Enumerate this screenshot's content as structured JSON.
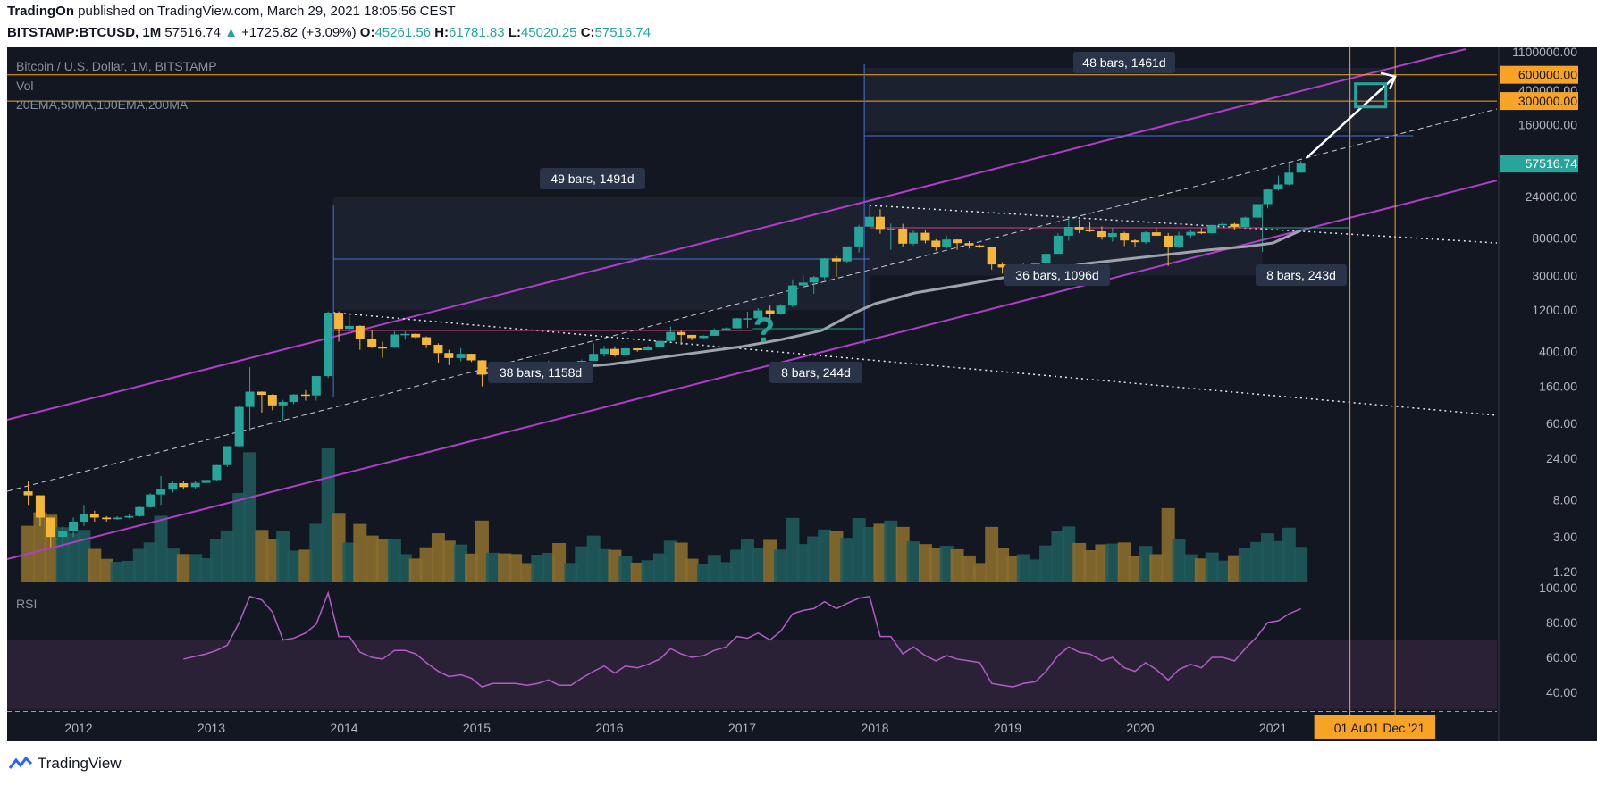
{
  "header": {
    "publisher": "TradingOn",
    "published_text": "published on TradingView.com, March 29, 2021 18:05:56 CEST",
    "symbol": "BITSTAMP:BTCUSD, 1M",
    "last": "57516.74",
    "change": "+1725.82 (+3.09%)",
    "o_label": "O:",
    "o": "45261.56",
    "h_label": "H:",
    "h": "61781.83",
    "l_label": "L:",
    "l": "45020.25",
    "c_label": "C:",
    "c": "57516.74"
  },
  "legend": {
    "title": "Bitcoin / U.S. Dollar, 1M, BITSTAMP",
    "vol": "Vol",
    "ma": "20EMA,50MA,100EMA,200MA",
    "rsi": "RSI"
  },
  "footer": {
    "brand": "TradingView"
  },
  "colors": {
    "bg": "#131722",
    "up": "#26a69a",
    "down": "#f5b73a",
    "channel": "#b03ec8",
    "hline": "#f7a325",
    "ma": "#9fa3ab",
    "measure": "#2962ff",
    "rsi": "#b35cc7"
  },
  "chart_data": {
    "type": "candlestick",
    "title": "Bitcoin / U.S. Dollar, 1M, BITSTAMP",
    "y_scale": "log",
    "price_ticks": [
      "1100000.00",
      "400000.00",
      "160000.00",
      "24000.00",
      "8000.00",
      "3000.00",
      "1200.00",
      "400.00",
      "160.00",
      "60.00",
      "24.00",
      "8.00",
      "3.00",
      "1.20"
    ],
    "price_tick_values": [
      1100000,
      400000,
      160000,
      24000,
      8000,
      3000,
      1200,
      400,
      160,
      60,
      24,
      8,
      3,
      1.2
    ],
    "rsi_ticks": [
      "100.00",
      "80.00",
      "60.00",
      "40.00"
    ],
    "rsi_tick_values": [
      100,
      80,
      60,
      40
    ],
    "x_ticks": [
      "2012",
      "2013",
      "2014",
      "2015",
      "2016",
      "2017",
      "2018",
      "2019",
      "2020",
      "2021"
    ],
    "x_tick_values": [
      2012,
      2013,
      2014,
      2015,
      2016,
      2017,
      2018,
      2019,
      2020,
      2021
    ],
    "horizontal_levels": [
      {
        "label": "600000.00",
        "value": 600000
      },
      {
        "label": "300000.00",
        "value": 300000
      }
    ],
    "last_price_label": "57516.74",
    "last_price": 57516.74,
    "vertical_markers": [
      {
        "label": "01 Au",
        "t": 2021.58
      },
      {
        "label": "01 Dec '21",
        "t": 2021.92
      }
    ],
    "measurements": [
      {
        "label": "48 bars, 1461d",
        "t0": 2017.92,
        "t1": 2021.92
      },
      {
        "label": "49 bars, 1491d",
        "t0": 2013.92,
        "t1": 2017.96
      },
      {
        "label": "38 bars, 1158d",
        "t0": 2013.92,
        "t1": 2017.08
      },
      {
        "label": "8 bars, 244d",
        "t0": 2017.08,
        "t1": 2017.92
      },
      {
        "label": "36 bars, 1096d",
        "t0": 2017.96,
        "t1": 2020.92
      },
      {
        "label": "8 bars, 243d",
        "t0": 2020.92,
        "t1": 2021.58
      }
    ],
    "annotation": "?",
    "candles": [
      [
        2011.62,
        10,
        13,
        7,
        9
      ],
      [
        2011.71,
        9,
        9,
        4,
        5
      ],
      [
        2011.79,
        5,
        5,
        2.3,
        3
      ],
      [
        2011.88,
        3,
        4,
        2.2,
        3.5
      ],
      [
        2011.96,
        3.5,
        5,
        3,
        4.5
      ],
      [
        2012.04,
        4.5,
        7,
        4,
        5.5
      ],
      [
        2012.12,
        5.5,
        6,
        4.5,
        5
      ],
      [
        2012.21,
        5,
        5.2,
        4.5,
        4.8
      ],
      [
        2012.29,
        4.8,
        5.2,
        4.7,
        5
      ],
      [
        2012.38,
        5,
        5.5,
        4.9,
        5.2
      ],
      [
        2012.46,
        5.2,
        6.8,
        5.1,
        6.6
      ],
      [
        2012.54,
        6.6,
        9.5,
        6.5,
        9.2
      ],
      [
        2012.62,
        9.2,
        15,
        7,
        10.5
      ],
      [
        2012.71,
        10.5,
        13,
        9.7,
        12.4
      ],
      [
        2012.79,
        12.4,
        13,
        10.5,
        11.2
      ],
      [
        2012.88,
        11.2,
        13,
        10.5,
        12.5
      ],
      [
        2012.96,
        12.5,
        14,
        12,
        13.5
      ],
      [
        2013.04,
        13.5,
        20,
        13,
        20
      ],
      [
        2013.12,
        20,
        33,
        19,
        33
      ],
      [
        2013.21,
        33,
        95,
        32,
        93
      ],
      [
        2013.29,
        93,
        266,
        50,
        139
      ],
      [
        2013.38,
        139,
        140,
        80,
        128
      ],
      [
        2013.46,
        128,
        130,
        85,
        97
      ],
      [
        2013.54,
        97,
        112,
        65,
        106
      ],
      [
        2013.62,
        106,
        130,
        100,
        129
      ],
      [
        2013.71,
        129,
        145,
        110,
        126
      ],
      [
        2013.79,
        126,
        210,
        110,
        210
      ],
      [
        2013.88,
        210,
        1160,
        200,
        1120
      ],
      [
        2013.96,
        1120,
        1160,
        520,
        730
      ],
      [
        2014.04,
        730,
        1020,
        700,
        790
      ],
      [
        2014.12,
        790,
        800,
        420,
        560
      ],
      [
        2014.21,
        560,
        710,
        440,
        450
      ],
      [
        2014.29,
        450,
        520,
        340,
        445
      ],
      [
        2014.38,
        445,
        680,
        440,
        630
      ],
      [
        2014.46,
        630,
        680,
        550,
        640
      ],
      [
        2014.54,
        640,
        650,
        560,
        586
      ],
      [
        2014.62,
        586,
        600,
        440,
        480
      ],
      [
        2014.71,
        480,
        500,
        300,
        386
      ],
      [
        2014.79,
        386,
        420,
        280,
        338
      ],
      [
        2014.88,
        338,
        440,
        310,
        378
      ],
      [
        2014.96,
        378,
        380,
        305,
        318
      ],
      [
        2015.04,
        318,
        320,
        160,
        218
      ],
      [
        2015.12,
        218,
        265,
        210,
        254
      ],
      [
        2015.21,
        254,
        300,
        240,
        244
      ],
      [
        2015.29,
        244,
        260,
        210,
        236
      ],
      [
        2015.38,
        236,
        250,
        230,
        230
      ],
      [
        2015.46,
        230,
        270,
        220,
        263
      ],
      [
        2015.54,
        263,
        315,
        250,
        285
      ],
      [
        2015.62,
        285,
        290,
        200,
        230
      ],
      [
        2015.71,
        230,
        245,
        225,
        237
      ],
      [
        2015.79,
        237,
        325,
        235,
        314
      ],
      [
        2015.88,
        314,
        500,
        310,
        377
      ],
      [
        2015.96,
        377,
        465,
        350,
        430
      ],
      [
        2016.04,
        430,
        460,
        350,
        368
      ],
      [
        2016.12,
        368,
        440,
        365,
        437
      ],
      [
        2016.21,
        437,
        438,
        400,
        416
      ],
      [
        2016.29,
        416,
        470,
        415,
        448
      ],
      [
        2016.38,
        448,
        550,
        440,
        531
      ],
      [
        2016.46,
        531,
        780,
        520,
        672
      ],
      [
        2016.54,
        672,
        700,
        480,
        623
      ],
      [
        2016.62,
        623,
        625,
        540,
        574
      ],
      [
        2016.71,
        574,
        615,
        570,
        609
      ],
      [
        2016.79,
        609,
        740,
        605,
        698
      ],
      [
        2016.88,
        698,
        760,
        690,
        742
      ],
      [
        2016.96,
        742,
        975,
        740,
        966
      ],
      [
        2017.04,
        966,
        1150,
        750,
        966
      ],
      [
        2017.12,
        966,
        1260,
        930,
        1190
      ],
      [
        2017.21,
        1190,
        1350,
        890,
        1071
      ],
      [
        2017.29,
        1071,
        1400,
        1060,
        1348
      ],
      [
        2017.38,
        1348,
        2700,
        1300,
        2300
      ],
      [
        2017.46,
        2300,
        3000,
        2100,
        2480
      ],
      [
        2017.54,
        2480,
        2950,
        1850,
        2860
      ],
      [
        2017.62,
        2860,
        4750,
        2700,
        4700
      ],
      [
        2017.71,
        4700,
        5000,
        2900,
        4340
      ],
      [
        2017.79,
        4340,
        6400,
        4100,
        6450
      ],
      [
        2017.88,
        6450,
        11400,
        5500,
        10860
      ],
      [
        2017.96,
        10860,
        19700,
        10800,
        14100
      ],
      [
        2018.04,
        14100,
        17200,
        9000,
        10200
      ],
      [
        2018.12,
        10200,
        11800,
        5900,
        10300
      ],
      [
        2018.21,
        10300,
        11700,
        6400,
        6930
      ],
      [
        2018.29,
        6930,
        9800,
        6600,
        9240
      ],
      [
        2018.38,
        9240,
        10000,
        7000,
        7500
      ],
      [
        2018.46,
        7500,
        7800,
        5750,
        6390
      ],
      [
        2018.54,
        6390,
        8500,
        6100,
        7730
      ],
      [
        2018.62,
        7730,
        7800,
        5880,
        7030
      ],
      [
        2018.71,
        7030,
        7400,
        6100,
        6620
      ],
      [
        2018.79,
        6620,
        6750,
        6200,
        6300
      ],
      [
        2018.88,
        6300,
        6400,
        3500,
        4000
      ],
      [
        2018.96,
        4000,
        4250,
        3150,
        3700
      ],
      [
        2019.04,
        3700,
        4100,
        3400,
        3440
      ],
      [
        2019.12,
        3440,
        4200,
        3400,
        3800
      ],
      [
        2019.21,
        3800,
        4200,
        3670,
        4100
      ],
      [
        2019.29,
        4100,
        5600,
        4000,
        5300
      ],
      [
        2019.38,
        5300,
        9100,
        5300,
        8550
      ],
      [
        2019.46,
        8550,
        13800,
        7500,
        10800
      ],
      [
        2019.54,
        10800,
        13200,
        9100,
        10100
      ],
      [
        2019.62,
        10100,
        12300,
        9400,
        9600
      ],
      [
        2019.71,
        9600,
        10950,
        7700,
        8300
      ],
      [
        2019.79,
        8300,
        10500,
        7300,
        9150
      ],
      [
        2019.88,
        9150,
        9500,
        6500,
        7550
      ],
      [
        2019.96,
        7550,
        7750,
        6400,
        7200
      ],
      [
        2020.04,
        7200,
        9600,
        6900,
        9350
      ],
      [
        2020.12,
        9350,
        10500,
        8500,
        8550
      ],
      [
        2020.21,
        8550,
        9200,
        3850,
        6410
      ],
      [
        2020.29,
        6410,
        9450,
        6150,
        8630
      ],
      [
        2020.38,
        8630,
        10050,
        8150,
        9450
      ],
      [
        2020.46,
        9450,
        10400,
        8950,
        9140
      ],
      [
        2020.54,
        9140,
        11450,
        9050,
        11350
      ],
      [
        2020.62,
        11350,
        12500,
        11100,
        11650
      ],
      [
        2020.71,
        11650,
        12050,
        9900,
        10780
      ],
      [
        2020.79,
        10780,
        14100,
        10400,
        13800
      ],
      [
        2020.88,
        13800,
        19500,
        13250,
        19700
      ],
      [
        2020.96,
        19700,
        29300,
        17600,
        28990
      ],
      [
        2021.04,
        28990,
        41950,
        28150,
        33110
      ],
      [
        2021.12,
        33110,
        58350,
        32300,
        45200
      ],
      [
        2021.21,
        45260,
        61780,
        45020,
        57517
      ]
    ],
    "rsi": [
      [
        2012.79,
        59
      ],
      [
        2012.96,
        62
      ],
      [
        2013.04,
        64
      ],
      [
        2013.12,
        67
      ],
      [
        2013.21,
        80
      ],
      [
        2013.29,
        95
      ],
      [
        2013.38,
        93
      ],
      [
        2013.46,
        86
      ],
      [
        2013.54,
        70
      ],
      [
        2013.62,
        71
      ],
      [
        2013.71,
        74
      ],
      [
        2013.79,
        79
      ],
      [
        2013.88,
        97
      ],
      [
        2013.96,
        72
      ],
      [
        2014.04,
        72
      ],
      [
        2014.12,
        63
      ],
      [
        2014.21,
        60
      ],
      [
        2014.29,
        59
      ],
      [
        2014.38,
        64
      ],
      [
        2014.46,
        64
      ],
      [
        2014.54,
        62
      ],
      [
        2014.62,
        57
      ],
      [
        2014.71,
        52
      ],
      [
        2014.79,
        49
      ],
      [
        2014.88,
        50
      ],
      [
        2014.96,
        48
      ],
      [
        2015.04,
        43
      ],
      [
        2015.12,
        45
      ],
      [
        2015.21,
        45
      ],
      [
        2015.29,
        45
      ],
      [
        2015.38,
        44
      ],
      [
        2015.46,
        45
      ],
      [
        2015.54,
        47
      ],
      [
        2015.62,
        44
      ],
      [
        2015.71,
        44
      ],
      [
        2015.79,
        48
      ],
      [
        2015.88,
        52
      ],
      [
        2015.96,
        55
      ],
      [
        2016.04,
        51
      ],
      [
        2016.12,
        55
      ],
      [
        2016.21,
        54
      ],
      [
        2016.29,
        56
      ],
      [
        2016.38,
        59
      ],
      [
        2016.46,
        65
      ],
      [
        2016.54,
        62
      ],
      [
        2016.62,
        60
      ],
      [
        2016.71,
        61
      ],
      [
        2016.79,
        64
      ],
      [
        2016.88,
        66
      ],
      [
        2016.96,
        72
      ],
      [
        2017.04,
        71
      ],
      [
        2017.12,
        74
      ],
      [
        2017.21,
        70
      ],
      [
        2017.29,
        75
      ],
      [
        2017.38,
        85
      ],
      [
        2017.46,
        87
      ],
      [
        2017.54,
        88
      ],
      [
        2017.62,
        92
      ],
      [
        2017.71,
        88
      ],
      [
        2017.79,
        91
      ],
      [
        2017.88,
        94
      ],
      [
        2017.96,
        95
      ],
      [
        2018.04,
        72
      ],
      [
        2018.12,
        72
      ],
      [
        2018.21,
        62
      ],
      [
        2018.29,
        66
      ],
      [
        2018.38,
        61
      ],
      [
        2018.46,
        58
      ],
      [
        2018.54,
        61
      ],
      [
        2018.62,
        59
      ],
      [
        2018.71,
        58
      ],
      [
        2018.79,
        57
      ],
      [
        2018.88,
        45
      ],
      [
        2018.96,
        44
      ],
      [
        2019.04,
        43
      ],
      [
        2019.12,
        45
      ],
      [
        2019.21,
        46
      ],
      [
        2019.29,
        52
      ],
      [
        2019.38,
        61
      ],
      [
        2019.46,
        66
      ],
      [
        2019.54,
        63
      ],
      [
        2019.62,
        62
      ],
      [
        2019.71,
        58
      ],
      [
        2019.79,
        60
      ],
      [
        2019.88,
        54
      ],
      [
        2019.96,
        52
      ],
      [
        2020.04,
        57
      ],
      [
        2020.12,
        53
      ],
      [
        2020.21,
        47
      ],
      [
        2020.29,
        53
      ],
      [
        2020.38,
        56
      ],
      [
        2020.46,
        54
      ],
      [
        2020.54,
        60
      ],
      [
        2020.62,
        60
      ],
      [
        2020.71,
        58
      ],
      [
        2020.79,
        65
      ],
      [
        2020.88,
        72
      ],
      [
        2020.96,
        80
      ],
      [
        2021.04,
        81
      ],
      [
        2021.12,
        85
      ],
      [
        2021.21,
        88
      ]
    ]
  }
}
